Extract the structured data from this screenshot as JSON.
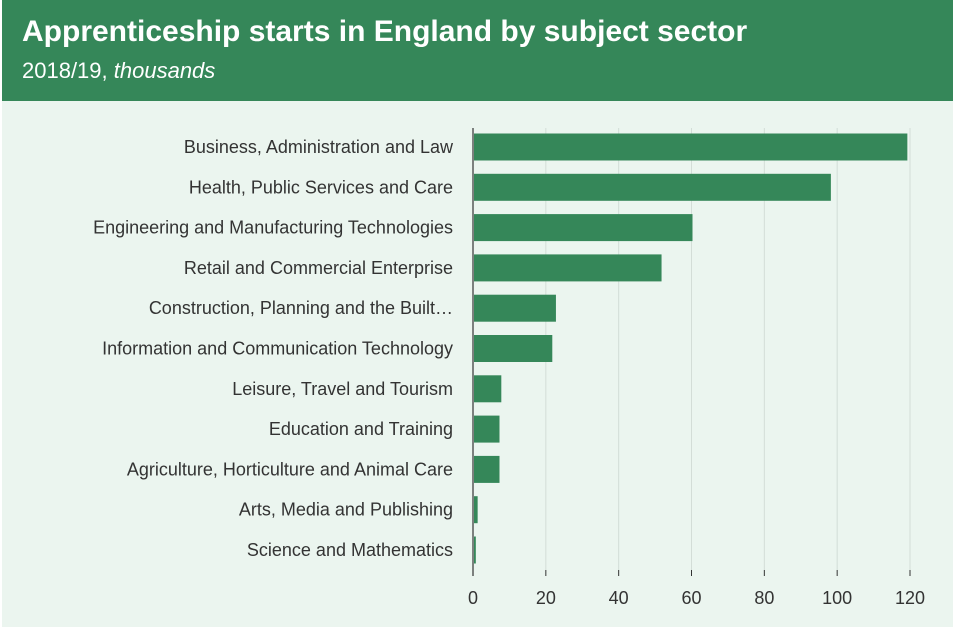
{
  "header": {
    "title": "Apprenticeship starts in England by subject sector",
    "subtitle_year": "2018/19,",
    "subtitle_units": "thousands"
  },
  "colors": {
    "header_bg": "#358759",
    "panel_bg": "#ebf5ef",
    "bar": "#358759",
    "grid": "#d3ddd7",
    "axis": "#333333"
  },
  "chart_data": {
    "type": "bar",
    "orientation": "horizontal",
    "title": "Apprenticeship starts in England by subject sector",
    "subtitle": "2018/19, thousands",
    "categories": [
      "Business, Administration and Law",
      "Health, Public Services and Care",
      "Engineering and Manufacturing Technologies",
      "Retail and Commercial Enterprise",
      "Construction, Planning and the Built…",
      "Information and Communication Technology",
      "Leisure, Travel and Tourism",
      "Education and Training",
      "Agriculture, Horticulture and Animal Care",
      "Arts, Media and Publishing",
      "Science and Mathematics"
    ],
    "values": [
      119,
      98,
      60,
      51.5,
      22.5,
      21.5,
      7.5,
      7,
      7,
      1,
      0.5
    ],
    "xlim": [
      0,
      120
    ],
    "xticks": [
      0,
      20,
      40,
      60,
      80,
      100,
      120
    ],
    "xlabel": "",
    "ylabel": "",
    "grid": "vertical"
  }
}
